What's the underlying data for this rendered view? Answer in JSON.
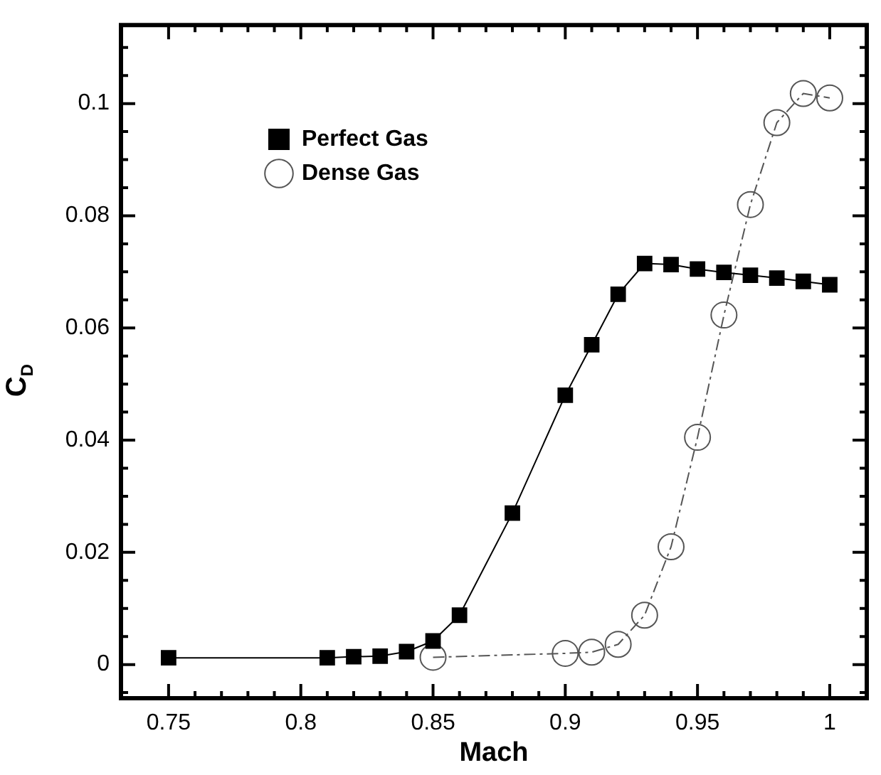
{
  "chart_data": {
    "type": "line",
    "xlabel": "Mach",
    "ylabel": "C$_{D}$",
    "xlim": [
      0.732,
      1.014
    ],
    "ylim": [
      -0.006,
      0.114
    ],
    "xticks": [
      0.75,
      {
        "value": 0.76,
        "label": null
      },
      {
        "value": 0.77,
        "label": null
      },
      {
        "value": 0.78,
        "label": null
      },
      {
        "value": 0.79,
        "label": null
      },
      0.8,
      {
        "value": 0.81,
        "label": null
      },
      {
        "value": 0.82,
        "label": null
      },
      {
        "value": 0.83,
        "label": null
      },
      {
        "value": 0.84,
        "label": null
      },
      0.85,
      {
        "value": 0.86,
        "label": null
      },
      {
        "value": 0.87,
        "label": null
      },
      {
        "value": 0.88,
        "label": null
      },
      {
        "value": 0.89,
        "label": null
      },
      0.9,
      {
        "value": 0.91,
        "label": null
      },
      {
        "value": 0.92,
        "label": null
      },
      {
        "value": 0.93,
        "label": null
      },
      {
        "value": 0.94,
        "label": null
      },
      0.95,
      {
        "value": 0.96,
        "label": null
      },
      {
        "value": 0.97,
        "label": null
      },
      {
        "value": 0.98,
        "label": null
      },
      {
        "value": 0.99,
        "label": null
      },
      1
    ],
    "yticks": [
      {
        "value": -0.005,
        "label": null
      },
      0,
      {
        "value": 0.005,
        "label": null
      },
      {
        "value": 0.01,
        "label": null
      },
      {
        "value": 0.015,
        "label": null
      },
      0.02,
      {
        "value": 0.025,
        "label": null
      },
      {
        "value": 0.03,
        "label": null
      },
      {
        "value": 0.035,
        "label": null
      },
      0.04,
      {
        "value": 0.045,
        "label": null
      },
      {
        "value": 0.05,
        "label": null
      },
      {
        "value": 0.055,
        "label": null
      },
      0.06,
      {
        "value": 0.065,
        "label": null
      },
      {
        "value": 0.07,
        "label": null
      },
      {
        "value": 0.075,
        "label": null
      },
      0.08,
      {
        "value": 0.085,
        "label": null
      },
      {
        "value": 0.09,
        "label": null
      },
      {
        "value": 0.095,
        "label": null
      },
      0.1,
      {
        "value": 0.105,
        "label": null
      },
      {
        "value": 0.11,
        "label": null
      }
    ],
    "grid": false,
    "legend": "top left",
    "series": [
      {
        "name": "Perfect Gas",
        "color": "#000000",
        "marker": "square",
        "line_style": "solid",
        "x": [
          0.75,
          0.81,
          0.82,
          0.83,
          0.84,
          0.85,
          0.86,
          0.88,
          0.9,
          0.91,
          0.92,
          0.93,
          0.94,
          0.95,
          0.96,
          0.97,
          0.98,
          0.99,
          1.0
        ],
        "values": [
          0.0012,
          0.0012,
          0.0014,
          0.0015,
          0.0023,
          0.0042,
          0.0088,
          0.027,
          0.048,
          0.057,
          0.066,
          0.0715,
          0.0713,
          0.0705,
          0.0699,
          0.0694,
          0.0689,
          0.0683,
          0.0677
        ]
      },
      {
        "name": "Dense Gas",
        "color": "#555555",
        "marker": "circle",
        "line_style": "dashed",
        "x": [
          0.85,
          0.9,
          0.91,
          0.92,
          0.93,
          0.94,
          0.95,
          0.96,
          0.97,
          0.98,
          0.99,
          1.0
        ],
        "values": [
          0.0013,
          0.002,
          0.0022,
          0.0036,
          0.0088,
          0.021,
          0.0405,
          0.0623,
          0.082,
          0.0966,
          0.1018,
          0.101
        ]
      }
    ]
  }
}
